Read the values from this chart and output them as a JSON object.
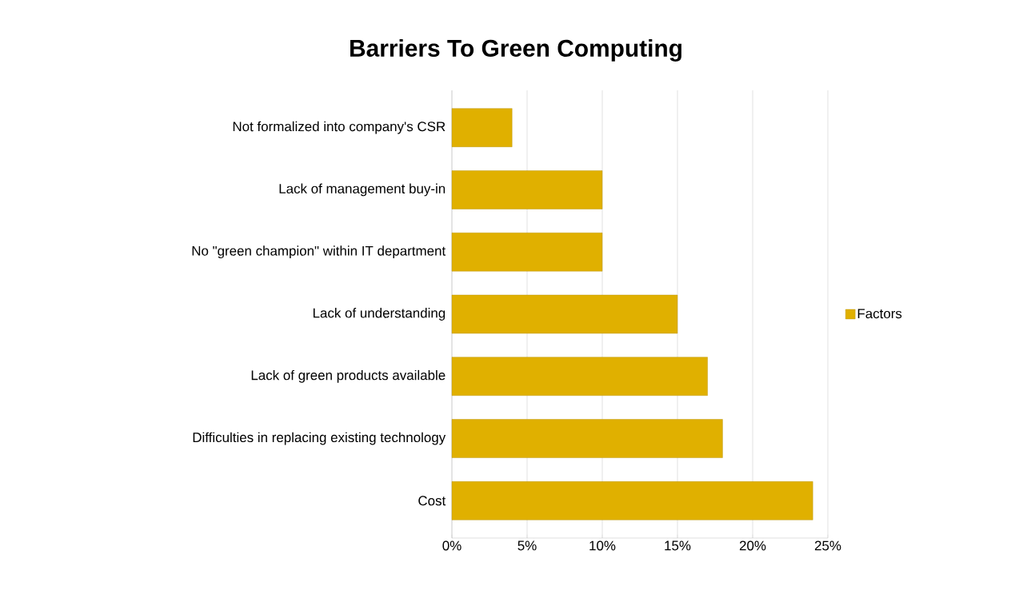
{
  "chart_data": {
    "type": "bar",
    "orientation": "horizontal",
    "title": "Barriers To Green Computing",
    "categories": [
      "Not formalized into company's CSR",
      "Lack of management buy-in",
      "No \"green champion\" within IT department",
      "Lack of understanding",
      "Lack of green products available",
      "Difficulties in replacing existing technology",
      "Cost"
    ],
    "series": [
      {
        "name": "Factors",
        "color": "#e0b000",
        "values": [
          4,
          10,
          10,
          15,
          17,
          18,
          24
        ]
      }
    ],
    "xlim": [
      0,
      25
    ],
    "xticks": [
      {
        "value": 0,
        "label": "0%"
      },
      {
        "value": 5,
        "label": "5%"
      },
      {
        "value": 10,
        "label": "10%"
      },
      {
        "value": 15,
        "label": "15%"
      },
      {
        "value": 20,
        "label": "20%"
      },
      {
        "value": 25,
        "label": "25%"
      }
    ],
    "grid": "x",
    "legend": "right"
  }
}
